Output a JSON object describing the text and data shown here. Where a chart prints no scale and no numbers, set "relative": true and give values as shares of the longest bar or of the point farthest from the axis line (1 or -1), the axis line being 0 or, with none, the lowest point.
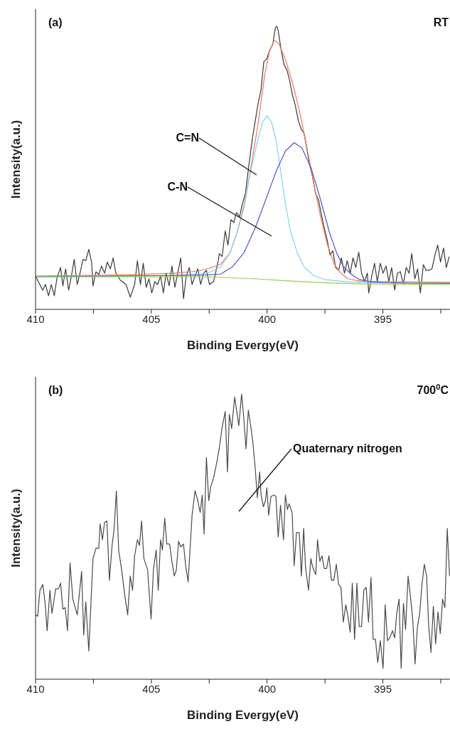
{
  "chart_data": [
    {
      "type": "line",
      "relative": true,
      "xlabel": "Binding Evergy(eV)",
      "ylabel": "Intensity(a.u.)",
      "xlim": [
        410,
        392.1
      ],
      "xticks": [
        410,
        {
          "value": 407.5,
          "label": null
        },
        405,
        {
          "value": 402.5,
          "label": null
        },
        400,
        {
          "value": 397.5,
          "label": null
        },
        395,
        {
          "value": 392.5,
          "label": null
        }
      ],
      "annotations": [
        "(a)",
        "RT",
        "C=N",
        "C-N"
      ],
      "series": [
        {
          "color": "#3a3a3a",
          "x": [
            410,
            409.88,
            409.69,
            409.57,
            409.44,
            409.32,
            409.19,
            409.07,
            408.92,
            408.82,
            408.7,
            408.57,
            408.45,
            408.33,
            408.2,
            408.08,
            407.95,
            407.83,
            407.7,
            407.58,
            407.52,
            407.39,
            407.27,
            407.15,
            407.02,
            406.9,
            406.77,
            406.65,
            406.53,
            406.34,
            406.09,
            405.91,
            405.72,
            405.6,
            405.47,
            405.35,
            405.22,
            405.1,
            404.98,
            404.85,
            404.73,
            404.6,
            404.48,
            404.36,
            404.23,
            404.11,
            403.98,
            403.86,
            403.73,
            403.61,
            403.49,
            403.36,
            403.24,
            403.11,
            402.99,
            402.87,
            402.74,
            402.62,
            402.49,
            402.31,
            402.12,
            402.06,
            401.94,
            401.81,
            401.69,
            401.56,
            401.44,
            401.32,
            401.19,
            401.07,
            400.94,
            400.76,
            400.63,
            400.51,
            400.39,
            400.26,
            400.14,
            400.01,
            399.89,
            399.76,
            399.64,
            399.58,
            399.52,
            399.39,
            399.27,
            399.14,
            399.02,
            398.9,
            398.77,
            398.65,
            398.52,
            398.4,
            398.28,
            398.15,
            398.03,
            397.9,
            397.78,
            397.66,
            397.53,
            397.41,
            397.28,
            397.16,
            397.04,
            396.91,
            396.79,
            396.66,
            396.54,
            396.41,
            396.29,
            396.17,
            396.04,
            395.92,
            395.79,
            395.67,
            395.61,
            395.48,
            395.36,
            395.24,
            395.11,
            394.99,
            394.86,
            394.74,
            394.62,
            394.49,
            394.37,
            394.24,
            394.12,
            393.99,
            393.87,
            393.75,
            393.62,
            393.5,
            393.38,
            393.25,
            393.13,
            393,
            392.88,
            392.75,
            392.63,
            392.51,
            392.38,
            392.26,
            392.13
          ],
          "values": [
            0.118,
            0.098,
            0.068,
            0.088,
            0.048,
            0.088,
            0.048,
            0.113,
            0.148,
            0.083,
            0.143,
            0.068,
            0.118,
            0.177,
            0.088,
            0.128,
            0.177,
            0.172,
            0.212,
            0.167,
            0.083,
            0.133,
            0.123,
            0.153,
            0.128,
            0.167,
            0.143,
            0.182,
            0.128,
            0.103,
            0.088,
            0.043,
            0.088,
            0.172,
            0.088,
            0.163,
            0.078,
            0.108,
            0.058,
            0.098,
            0.088,
            0.118,
            0.058,
            0.128,
            0.083,
            0.153,
            0.078,
            0.128,
            0.182,
            0.038,
            0.118,
            0.148,
            0.088,
            0.118,
            0.143,
            0.088,
            0.128,
            0.138,
            0.088,
            0.098,
            0.167,
            0.197,
            0.187,
            0.277,
            0.227,
            0.317,
            0.307,
            0.342,
            0.327,
            0.372,
            0.407,
            0.526,
            0.606,
            0.666,
            0.726,
            0.776,
            0.875,
            0.885,
            0.915,
            0.935,
            0.995,
            1,
            0.985,
            0.915,
            0.865,
            0.845,
            0.806,
            0.756,
            0.716,
            0.666,
            0.636,
            0.621,
            0.566,
            0.506,
            0.467,
            0.407,
            0.387,
            0.337,
            0.287,
            0.247,
            0.192,
            0.207,
            0.148,
            0.138,
            0.182,
            0.128,
            0.172,
            0.128,
            0.182,
            0.148,
            0.202,
            0.128,
            0.098,
            0.128,
            0.058,
            0.118,
            0.163,
            0.098,
            0.163,
            0.128,
            0.153,
            0.098,
            0.148,
            0.068,
            0.128,
            0.133,
            0.088,
            0.148,
            0.128,
            0.197,
            0.108,
            0.143,
            0.058,
            0.158,
            0.138,
            0.138,
            0.143,
            0.192,
            0.227,
            0.167,
            0.217,
            0.148,
            0.187
          ]
        },
        {
          "color": "#f07a64",
          "x": [
            410,
            406,
            404,
            403,
            402.5,
            402,
            401.6,
            401.3,
            401,
            400.7,
            400.4,
            400.1,
            399.9,
            399.7,
            399.5,
            399.2,
            398.9,
            398.6,
            398.3,
            398,
            397.7,
            397.4,
            397.1,
            396.8,
            396.5,
            396,
            395,
            394,
            392.1
          ],
          "values": [
            0.118,
            0.122,
            0.128,
            0.135,
            0.145,
            0.16,
            0.2,
            0.27,
            0.36,
            0.5,
            0.65,
            0.83,
            0.91,
            0.95,
            0.94,
            0.88,
            0.8,
            0.7,
            0.58,
            0.45,
            0.33,
            0.23,
            0.16,
            0.127,
            0.108,
            0.1,
            0.098,
            0.097,
            0.096
          ]
        },
        {
          "color": "#86d2ea",
          "x": [
            410,
            404,
            403,
            402.5,
            402,
            401.6,
            401.3,
            401,
            400.7,
            400.4,
            400.2,
            400,
            399.8,
            399.6,
            399.4,
            399.2,
            399,
            398.7,
            398.4,
            398,
            397.5,
            396.5,
            395,
            392.1
          ],
          "values": [
            0.115,
            0.12,
            0.125,
            0.13,
            0.15,
            0.2,
            0.27,
            0.37,
            0.49,
            0.6,
            0.66,
            0.684,
            0.66,
            0.59,
            0.48,
            0.37,
            0.28,
            0.2,
            0.15,
            0.12,
            0.105,
            0.097,
            0.094,
            0.092
          ]
        },
        {
          "color": "#5555c4",
          "x": [
            410,
            404,
            402.5,
            402,
            401.5,
            401,
            400.5,
            400,
            399.6,
            399.2,
            398.83,
            398.5,
            398.1,
            397.7,
            397.3,
            397,
            396.7,
            396.3,
            396,
            395.5,
            394,
            392.1
          ],
          "values": [
            0.115,
            0.12,
            0.122,
            0.125,
            0.15,
            0.2,
            0.29,
            0.4,
            0.49,
            0.56,
            0.589,
            0.57,
            0.5,
            0.39,
            0.27,
            0.2,
            0.15,
            0.12,
            0.105,
            0.097,
            0.093,
            0.092
          ]
        },
        {
          "color": "#98cc5a",
          "x": [
            410,
            403,
            402,
            400.5,
            399,
            397.5,
            396,
            392.1
          ],
          "values": [
            0.115,
            0.115,
            0.113,
            0.108,
            0.1,
            0.094,
            0.09,
            0.088
          ]
        }
      ]
    },
    {
      "type": "line",
      "relative": true,
      "xlabel": "Binding Evergy(eV)",
      "ylabel": "Intensity(a.u.)",
      "xlim": [
        410,
        392.1
      ],
      "xticks": [
        410,
        {
          "value": 407.5,
          "label": null
        },
        405,
        {
          "value": 402.5,
          "label": null
        },
        400,
        {
          "value": 397.5,
          "label": null
        },
        395,
        {
          "value": 392.5,
          "label": null
        }
      ],
      "annotations": [
        "(b)",
        "700$^{0}$C",
        "Quaternary nitrogen"
      ],
      "series": [
        {
          "color": "#4a4a4a",
          "x": [
            410,
            409.91,
            409.81,
            409.69,
            409.59,
            409.5,
            409.38,
            409.29,
            409.13,
            409.01,
            408.92,
            408.82,
            408.72,
            408.62,
            408.51,
            408.39,
            408.2,
            408.01,
            407.92,
            407.83,
            407.7,
            407.61,
            407.52,
            407.39,
            407.27,
            407.21,
            407.11,
            407.02,
            406.92,
            406.81,
            406.69,
            406.61,
            406.51,
            406.41,
            406.28,
            406.14,
            406.02,
            405.91,
            405.81,
            405.72,
            405.6,
            405.51,
            405.42,
            405.32,
            405.16,
            405.01,
            404.91,
            404.79,
            404.7,
            404.6,
            404.52,
            404.42,
            404.33,
            404.21,
            404.11,
            404.01,
            403.92,
            403.82,
            403.73,
            403.61,
            403.51,
            403.41,
            403.24,
            403.11,
            402.99,
            402.89,
            402.8,
            402.72,
            402.62,
            402.52,
            402.43,
            402.31,
            402.18,
            402.06,
            401.94,
            401.81,
            401.71,
            401.63,
            401.53,
            401.4,
            401.32,
            401.22,
            401.1,
            401.01,
            400.91,
            400.81,
            400.69,
            400.61,
            400.51,
            400.42,
            400.32,
            400.26,
            400.16,
            400.07,
            400.01,
            399.93,
            399.83,
            399.7,
            399.62,
            399.52,
            399.42,
            399.29,
            399.21,
            399.12,
            399.05,
            398.92,
            398.83,
            398.73,
            398.61,
            398.52,
            398.42,
            398.34,
            398.21,
            398.11,
            398.03,
            397.9,
            397.82,
            397.72,
            397.63,
            397.53,
            397.43,
            397.33,
            397.22,
            397.12,
            397.01,
            396.91,
            396.81,
            396.71,
            396.6,
            396.51,
            396.41,
            396.32,
            396.22,
            396.12,
            396.02,
            395.92,
            395.82,
            395.72,
            395.62,
            395.51,
            395.42,
            395.32,
            395.22,
            395.11,
            394.99,
            394.9,
            394.8,
            394.7,
            394.58,
            394.49,
            394.4,
            394.3,
            394.21,
            394.11,
            394.02,
            393.91,
            393.81,
            393.71,
            393.61,
            393.51,
            393.41,
            393.31,
            393.21,
            393.11,
            393.02,
            392.92,
            392.82,
            392.72,
            392.62,
            392.52,
            392.42,
            392.32,
            392.22,
            392.12
          ],
          "values": [
            0.226,
            0.221,
            0.312,
            0.332,
            0.271,
            0.17,
            0.312,
            0.231,
            0.317,
            0.317,
            0.337,
            0.246,
            0.251,
            0.17,
            0.408,
            0.281,
            0.226,
            0.378,
            0.155,
            0.271,
            0.099,
            0.261,
            0.423,
            0.459,
            0.459,
            0.545,
            0.489,
            0.55,
            0.555,
            0.347,
            0.474,
            0.524,
            0.661,
            0.453,
            0.383,
            0.291,
            0.226,
            0.362,
            0.312,
            0.433,
            0.489,
            0.469,
            0.555,
            0.423,
            0.383,
            0.211,
            0.383,
            0.453,
            0.312,
            0.489,
            0.453,
            0.565,
            0.474,
            0.474,
            0.413,
            0.362,
            0.383,
            0.484,
            0.464,
            0.474,
            0.393,
            0.342,
            0.575,
            0.661,
            0.626,
            0.585,
            0.646,
            0.509,
            0.777,
            0.626,
            0.676,
            0.706,
            0.757,
            0.813,
            0.884,
            0.939,
            0.727,
            0.929,
            0.879,
            0.99,
            0.944,
            0.889,
            1,
            0.919,
            0.808,
            0.944,
            0.879,
            0.828,
            0.737,
            0.636,
            0.727,
            0.646,
            0.605,
            0.626,
            0.671,
            0.575,
            0.641,
            0.646,
            0.641,
            0.499,
            0.61,
            0.489,
            0.646,
            0.595,
            0.615,
            0.585,
            0.398,
            0.514,
            0.514,
            0.362,
            0.529,
            0.393,
            0.312,
            0.423,
            0.393,
            0.367,
            0.489,
            0.413,
            0.433,
            0.388,
            0.388,
            0.433,
            0.347,
            0.347,
            0.403,
            0.332,
            0.322,
            0.2,
            0.261,
            0.221,
            0.165,
            0.337,
            0.14,
            0.337,
            0.185,
            0.185,
            0.312,
            0.322,
            0.2,
            0.357,
            0.14,
            0.14,
            0.059,
            0.135,
            0.038,
            0.261,
            0.135,
            0.145,
            0.17,
            0.145,
            0.231,
            0.281,
            0.038,
            0.266,
            0.175,
            0.362,
            0.291,
            0.211,
            0.054,
            0.18,
            0.231,
            0.332,
            0.403,
            0.362,
            0.185,
            0.094,
            0.256,
            0.124,
            0.236,
            0.16,
            0.281,
            0.251,
            0.529,
            0.362
          ]
        }
      ]
    }
  ]
}
